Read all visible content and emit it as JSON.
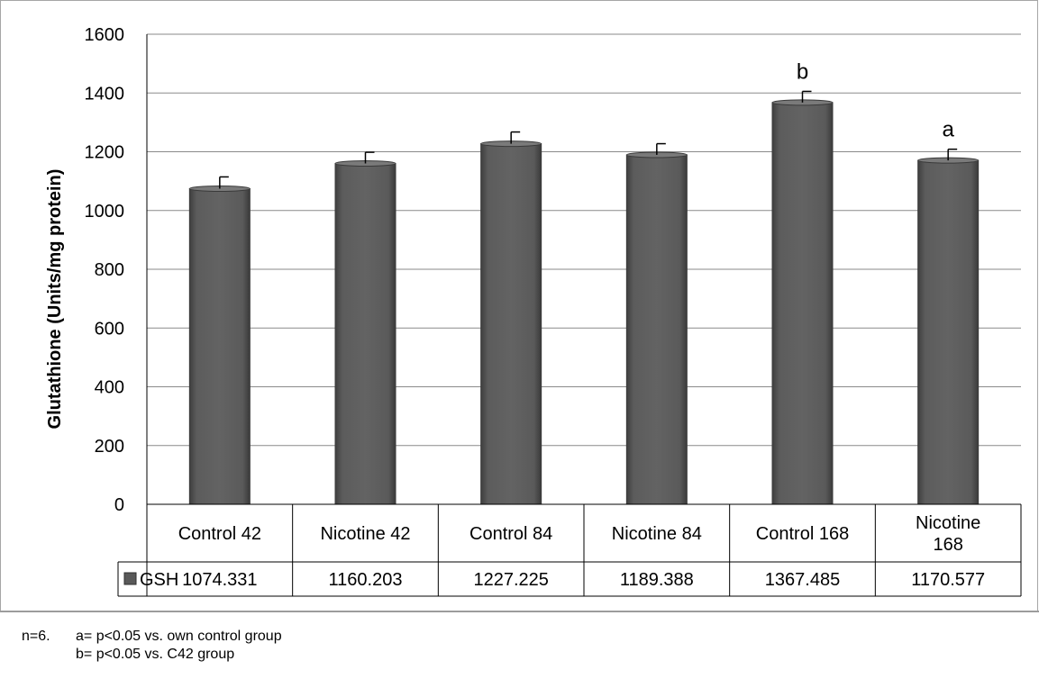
{
  "chart_data": {
    "type": "bar",
    "categories": [
      [
        "Control 42"
      ],
      [
        "Nicotine 42"
      ],
      [
        "Control 84"
      ],
      [
        "Nicotine 84"
      ],
      [
        "Control 168"
      ],
      [
        "Nicotine",
        "168"
      ]
    ],
    "series": [
      {
        "name": "GSH",
        "values": [
          1074.331,
          1160.203,
          1227.225,
          1189.388,
          1367.485,
          1170.577
        ],
        "value_labels": [
          "1074.331",
          "1160.203",
          "1227.225",
          "1189.388",
          "1367.485",
          "1170.577"
        ],
        "error_plus": [
          40,
          38,
          40,
          38,
          38,
          38
        ],
        "color": "#595959"
      }
    ],
    "annotations": [
      "",
      "",
      "",
      "",
      "b",
      "a"
    ],
    "ylabel": "Glutathione (Units/mg protein)",
    "xlabel": "",
    "ylim": [
      0,
      1600
    ],
    "yticks": [
      0,
      200,
      400,
      600,
      800,
      1000,
      1200,
      1400,
      1600
    ],
    "grid": true,
    "legend": "data-table"
  },
  "footnote": {
    "n": "n=6.",
    "line_a": "a= p<0.05 vs. own control group",
    "line_b": "b= p<0.05 vs. C42 group"
  }
}
